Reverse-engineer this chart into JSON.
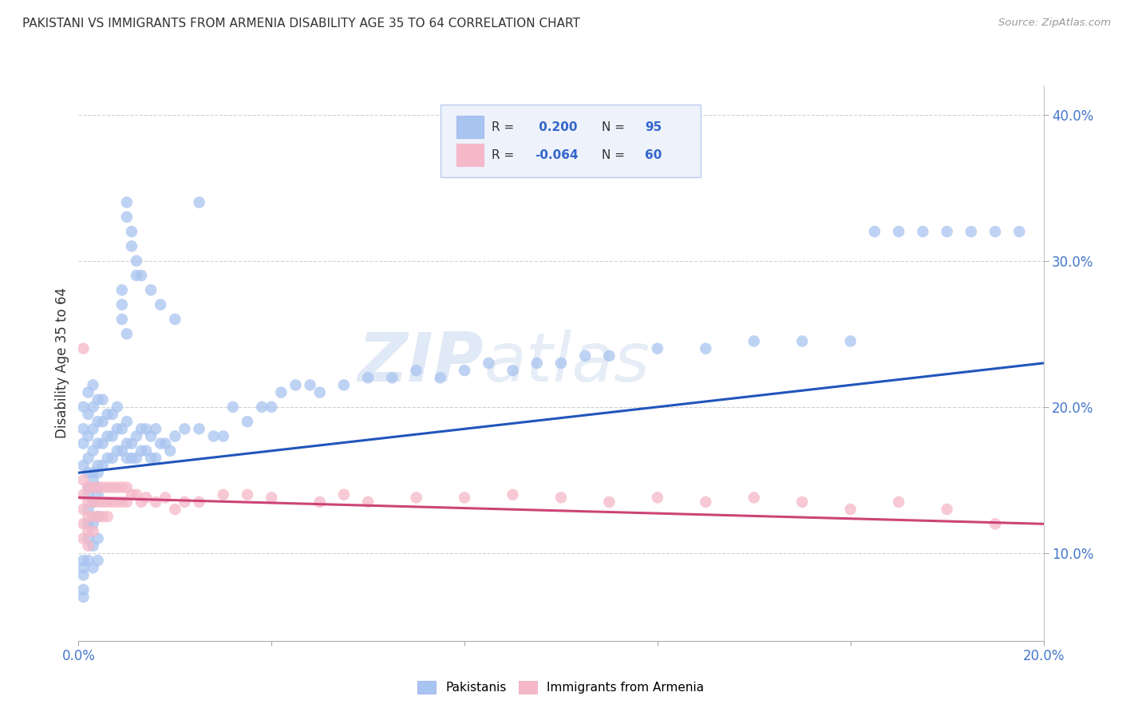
{
  "title": "PAKISTANI VS IMMIGRANTS FROM ARMENIA DISABILITY AGE 35 TO 64 CORRELATION CHART",
  "source": "Source: ZipAtlas.com",
  "ylabel_label": "Disability Age 35 to 64",
  "x_min": 0.0,
  "x_max": 0.2,
  "y_min": 0.04,
  "y_max": 0.42,
  "x_ticks": [
    0.0,
    0.04,
    0.08,
    0.12,
    0.16,
    0.2
  ],
  "y_ticks": [
    0.1,
    0.2,
    0.3,
    0.4
  ],
  "y_tick_labels": [
    "10.0%",
    "20.0%",
    "30.0%",
    "40.0%"
  ],
  "x_tick_labels": [
    "0.0%",
    "",
    "",
    "",
    "",
    "20.0%"
  ],
  "blue_R": 0.2,
  "blue_N": 95,
  "pink_R": -0.064,
  "pink_N": 60,
  "blue_color": "#a8c4f0",
  "pink_color": "#f5b8c8",
  "blue_line_color": "#2255bb",
  "pink_line_color": "#cc4477",
  "watermark_zip": "ZIP",
  "watermark_atlas": "atlas",
  "legend_label_blue": "Pakistanis",
  "legend_label_pink": "Immigrants from Armenia",
  "blue_x": [
    0.001,
    0.001,
    0.001,
    0.001,
    0.002,
    0.002,
    0.002,
    0.002,
    0.002,
    0.002,
    0.003,
    0.003,
    0.003,
    0.003,
    0.003,
    0.004,
    0.004,
    0.004,
    0.004,
    0.004,
    0.005,
    0.005,
    0.005,
    0.005,
    0.006,
    0.006,
    0.006,
    0.007,
    0.007,
    0.007,
    0.008,
    0.008,
    0.008,
    0.009,
    0.009,
    0.01,
    0.01,
    0.01,
    0.011,
    0.011,
    0.012,
    0.012,
    0.013,
    0.013,
    0.014,
    0.014,
    0.015,
    0.015,
    0.016,
    0.016,
    0.017,
    0.018,
    0.019,
    0.02,
    0.022,
    0.025,
    0.028,
    0.03,
    0.032,
    0.035,
    0.038,
    0.04,
    0.042,
    0.045,
    0.048,
    0.05,
    0.055,
    0.06,
    0.065,
    0.07,
    0.075,
    0.08,
    0.085,
    0.09,
    0.095,
    0.1,
    0.105,
    0.11,
    0.12,
    0.13,
    0.14,
    0.15,
    0.16,
    0.165,
    0.17,
    0.175,
    0.18,
    0.185,
    0.19,
    0.195,
    0.013,
    0.015,
    0.017,
    0.02,
    0.025
  ],
  "blue_y": [
    0.16,
    0.175,
    0.185,
    0.2,
    0.155,
    0.165,
    0.18,
    0.195,
    0.145,
    0.21,
    0.155,
    0.17,
    0.185,
    0.2,
    0.215,
    0.16,
    0.175,
    0.19,
    0.205,
    0.145,
    0.16,
    0.175,
    0.19,
    0.205,
    0.165,
    0.18,
    0.195,
    0.165,
    0.18,
    0.195,
    0.17,
    0.185,
    0.2,
    0.17,
    0.185,
    0.175,
    0.19,
    0.165,
    0.175,
    0.165,
    0.18,
    0.165,
    0.185,
    0.17,
    0.185,
    0.17,
    0.18,
    0.165,
    0.185,
    0.165,
    0.175,
    0.175,
    0.17,
    0.18,
    0.185,
    0.185,
    0.18,
    0.18,
    0.2,
    0.19,
    0.2,
    0.2,
    0.21,
    0.215,
    0.215,
    0.21,
    0.215,
    0.22,
    0.22,
    0.225,
    0.22,
    0.225,
    0.23,
    0.225,
    0.23,
    0.23,
    0.235,
    0.235,
    0.24,
    0.24,
    0.245,
    0.245,
    0.245,
    0.32,
    0.32,
    0.32,
    0.32,
    0.32,
    0.32,
    0.32,
    0.29,
    0.28,
    0.27,
    0.26,
    0.34
  ],
  "blue_y_extra": [
    0.095,
    0.09,
    0.085,
    0.075,
    0.07,
    0.14,
    0.13,
    0.12,
    0.11,
    0.095,
    0.15,
    0.135,
    0.12,
    0.105,
    0.09,
    0.155,
    0.14,
    0.125,
    0.11,
    0.095,
    0.28,
    0.27,
    0.26,
    0.25,
    0.34,
    0.33,
    0.32,
    0.31,
    0.3,
    0.29
  ],
  "blue_x_extra": [
    0.001,
    0.001,
    0.001,
    0.001,
    0.001,
    0.002,
    0.002,
    0.002,
    0.002,
    0.002,
    0.003,
    0.003,
    0.003,
    0.003,
    0.003,
    0.004,
    0.004,
    0.004,
    0.004,
    0.004,
    0.009,
    0.009,
    0.009,
    0.01,
    0.01,
    0.01,
    0.011,
    0.011,
    0.012,
    0.012
  ],
  "pink_x": [
    0.001,
    0.001,
    0.001,
    0.001,
    0.001,
    0.002,
    0.002,
    0.002,
    0.002,
    0.002,
    0.003,
    0.003,
    0.003,
    0.003,
    0.004,
    0.004,
    0.004,
    0.005,
    0.005,
    0.005,
    0.006,
    0.006,
    0.006,
    0.007,
    0.007,
    0.008,
    0.008,
    0.009,
    0.009,
    0.01,
    0.01,
    0.011,
    0.012,
    0.013,
    0.014,
    0.016,
    0.018,
    0.02,
    0.022,
    0.025,
    0.03,
    0.035,
    0.04,
    0.05,
    0.055,
    0.06,
    0.07,
    0.08,
    0.09,
    0.1,
    0.11,
    0.12,
    0.13,
    0.14,
    0.15,
    0.16,
    0.17,
    0.18,
    0.19,
    0.001
  ],
  "pink_y": [
    0.15,
    0.14,
    0.13,
    0.12,
    0.11,
    0.145,
    0.135,
    0.125,
    0.115,
    0.105,
    0.145,
    0.135,
    0.125,
    0.115,
    0.145,
    0.135,
    0.125,
    0.145,
    0.135,
    0.125,
    0.145,
    0.135,
    0.125,
    0.145,
    0.135,
    0.145,
    0.135,
    0.145,
    0.135,
    0.145,
    0.135,
    0.14,
    0.14,
    0.135,
    0.138,
    0.135,
    0.138,
    0.13,
    0.135,
    0.135,
    0.14,
    0.14,
    0.138,
    0.135,
    0.14,
    0.135,
    0.138,
    0.138,
    0.14,
    0.138,
    0.135,
    0.138,
    0.135,
    0.138,
    0.135,
    0.13,
    0.135,
    0.13,
    0.12,
    0.24
  ],
  "blue_trend_x": [
    0.0,
    0.2
  ],
  "blue_trend_y": [
    0.155,
    0.23
  ],
  "pink_trend_x": [
    0.0,
    0.2
  ],
  "pink_trend_y": [
    0.138,
    0.12
  ]
}
